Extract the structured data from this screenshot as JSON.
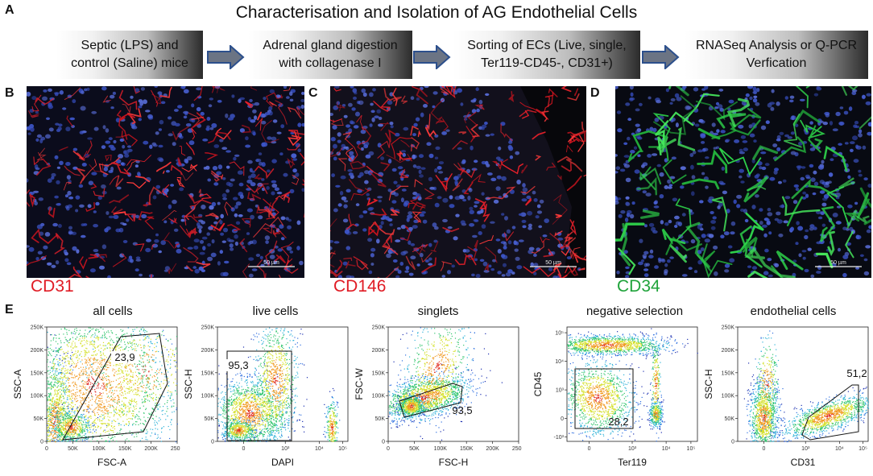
{
  "figure": {
    "title": "Characterisation and Isolation of AG Endothelial Cells",
    "panel_letters": {
      "a": "A",
      "b": "B",
      "c": "C",
      "d": "D",
      "e": "E"
    }
  },
  "workflow": {
    "steps": [
      {
        "line1": "Septic (LPS) and",
        "line2": "control (Saline) mice"
      },
      {
        "line1": "Adrenal gland digestion",
        "line2": "with collagenase I"
      },
      {
        "line1": "Sorting of ECs (Live, single,",
        "line2": "Ter119-CD45-, CD31+)"
      },
      {
        "line1": "RNASeq Analysis or Q-PCR",
        "line2": "Verfication"
      }
    ]
  },
  "micrographs": [
    {
      "stain": "CD31",
      "stain_color": "#e01b24",
      "scale_bar": "50 µm",
      "signal": "red"
    },
    {
      "stain": "CD146",
      "stain_color": "#e01b24",
      "scale_bar": "50 µm",
      "signal": "red"
    },
    {
      "stain": "CD34",
      "stain_color": "#1fa33a",
      "scale_bar": "50 µm",
      "signal": "green"
    }
  ],
  "facs": {
    "plots": [
      {
        "title": "all cells",
        "xlabel": "FSC-A",
        "ylabel": "SSC-A",
        "gate_value": "23,9",
        "x_ticks": [
          "0",
          "50K",
          "100K",
          "150K",
          "200K",
          "250K"
        ],
        "y_ticks": [
          "0",
          "50K",
          "100K",
          "150K",
          "200K",
          "250K"
        ]
      },
      {
        "title": "live cells",
        "xlabel": "DAPI",
        "ylabel": "SSC-H",
        "gate_value": "95,3",
        "x_ticks": [
          "0",
          "10³",
          "10⁴",
          "10⁵"
        ],
        "y_ticks": [
          "0",
          "50K",
          "100K",
          "150K",
          "200K",
          "250K"
        ]
      },
      {
        "title": "singlets",
        "xlabel": "FSC-H",
        "ylabel": "FSC-W",
        "gate_value": "93,5",
        "x_ticks": [
          "0",
          "50K",
          "100K",
          "150K",
          "200K",
          "250K"
        ],
        "y_ticks": [
          "0",
          "50K",
          "100K",
          "150K",
          "200K",
          "250K"
        ]
      },
      {
        "title": "negative selection",
        "xlabel": "Ter119",
        "ylabel": "CD45",
        "gate_value": "28,2",
        "x_ticks": [
          "0",
          "10³",
          "10⁴",
          "10⁵"
        ],
        "y_ticks": [
          "-10³",
          "0",
          "10³",
          "10⁴",
          "10⁵"
        ]
      },
      {
        "title": "endothelial cells",
        "xlabel": "CD31",
        "ylabel": "SSC-H",
        "gate_value": "51,2",
        "x_ticks": [
          "0",
          "10³",
          "10⁴",
          "10⁵"
        ],
        "y_ticks": [
          "0",
          "50K",
          "100K",
          "150K",
          "200K",
          "250K"
        ]
      }
    ]
  }
}
